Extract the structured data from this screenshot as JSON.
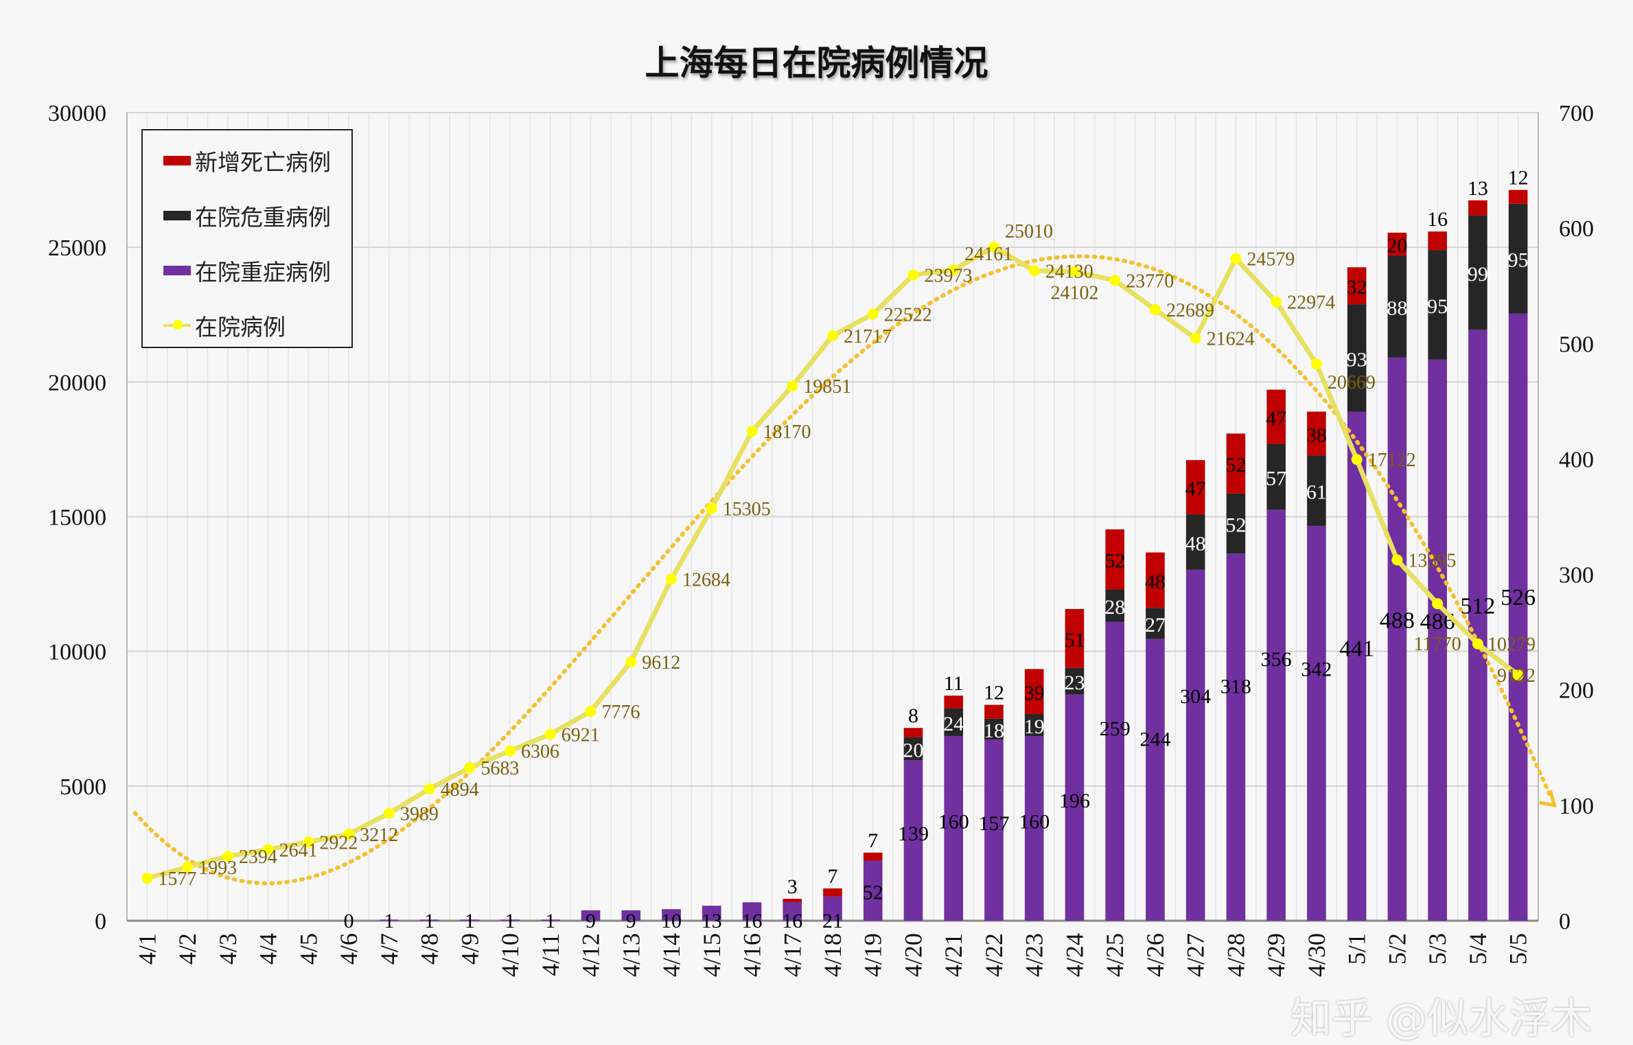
{
  "chart_data": {
    "type": "bar",
    "title": "上海每日在院病例情况",
    "categories": [
      "4/1",
      "4/2",
      "4/3",
      "4/4",
      "4/5",
      "4/6",
      "4/7",
      "4/8",
      "4/9",
      "4/10",
      "4/11",
      "4/12",
      "4/13",
      "4/14",
      "4/15",
      "4/16",
      "4/17",
      "4/18",
      "4/19",
      "4/20",
      "4/21",
      "4/22",
      "4/23",
      "4/24",
      "4/25",
      "4/26",
      "4/27",
      "4/28",
      "4/29",
      "4/30",
      "5/1",
      "5/2",
      "5/3",
      "5/4",
      "5/5"
    ],
    "left_axis": {
      "ylim": [
        0,
        30000
      ],
      "ticks": [
        0,
        5000,
        10000,
        15000,
        20000,
        25000,
        30000
      ]
    },
    "right_axis": {
      "ylim": [
        0,
        700
      ],
      "ticks": [
        0,
        100,
        200,
        300,
        400,
        500,
        600,
        700
      ]
    },
    "grid": true,
    "legend_position": "top-left",
    "series": [
      {
        "name": "新增死亡病例",
        "type": "stacked-bar",
        "axis": "right",
        "color": "#c00000",
        "values": [
          null,
          null,
          null,
          null,
          null,
          null,
          null,
          null,
          null,
          null,
          null,
          null,
          null,
          null,
          null,
          null,
          3,
          7,
          7,
          8,
          11,
          12,
          39,
          51,
          52,
          48,
          47,
          52,
          47,
          38,
          32,
          20,
          16,
          13,
          12
        ]
      },
      {
        "name": "在院危重病例",
        "type": "stacked-bar",
        "axis": "right",
        "color": "#262626",
        "values": [
          null,
          null,
          null,
          null,
          null,
          null,
          null,
          null,
          null,
          null,
          null,
          null,
          null,
          null,
          null,
          null,
          null,
          null,
          null,
          20,
          24,
          18,
          19,
          23,
          28,
          27,
          48,
          52,
          57,
          61,
          93,
          88,
          95,
          99,
          95
        ]
      },
      {
        "name": "在院重症病例",
        "type": "stacked-bar",
        "axis": "right",
        "color": "#7030a0",
        "values": [
          null,
          null,
          null,
          null,
          null,
          0,
          1,
          1,
          1,
          1,
          1,
          9,
          9,
          10,
          13,
          16,
          16,
          21,
          52,
          139,
          160,
          157,
          160,
          196,
          259,
          244,
          304,
          318,
          356,
          342,
          441,
          488,
          486,
          512,
          526
        ]
      },
      {
        "name": "在院病例",
        "type": "line",
        "axis": "left",
        "color": "#ffff00",
        "trendline": "polynomial",
        "values": [
          1577,
          1993,
          2394,
          2641,
          2922,
          3212,
          3989,
          4894,
          5683,
          6306,
          6921,
          7776,
          9612,
          12684,
          15305,
          18170,
          19851,
          21717,
          22522,
          23973,
          24161,
          25010,
          24130,
          24102,
          23770,
          22689,
          21624,
          24579,
          22974,
          20669,
          17122,
          13395,
          11770,
          10279,
          9122
        ]
      }
    ]
  },
  "legend": {
    "items": [
      "新增死亡病例",
      "在院危重病例",
      "在院重症病例",
      "在院病例"
    ]
  },
  "watermark": "知乎 @似水浮木"
}
